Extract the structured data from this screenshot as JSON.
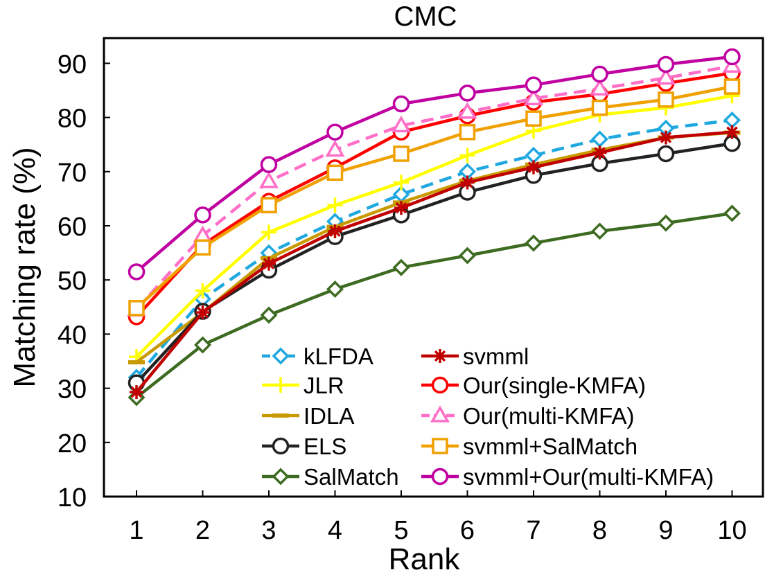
{
  "chart_data": {
    "type": "line",
    "title": "CMC",
    "xlabel": "Rank",
    "ylabel": "Matching rate (%)",
    "x": [
      1,
      2,
      3,
      4,
      5,
      6,
      7,
      8,
      9,
      10
    ],
    "xlim": [
      0.5,
      10.5
    ],
    "ylim": [
      10,
      95
    ],
    "yticks": [
      10,
      20,
      30,
      40,
      50,
      60,
      70,
      80,
      90
    ],
    "grid": false,
    "legend_position": "bottom-right",
    "series": [
      {
        "name": "kLFDA",
        "color": "#1fa8e0",
        "marker": "diamond-open",
        "dashed": true,
        "values": [
          32.0,
          46.5,
          55.0,
          60.8,
          65.8,
          70.0,
          73.0,
          76.0,
          78.0,
          79.5
        ]
      },
      {
        "name": "JLR",
        "color": "#ffff00",
        "marker": "plus",
        "dashed": false,
        "values": [
          35.8,
          48.0,
          58.8,
          63.8,
          68.0,
          73.0,
          77.5,
          80.5,
          81.8,
          84.0
        ]
      },
      {
        "name": "IDLA",
        "color": "#c89a00",
        "marker": "dash",
        "dashed": false,
        "values": [
          34.8,
          44.0,
          54.0,
          59.8,
          64.3,
          68.3,
          71.3,
          74.0,
          76.3,
          77.2
        ]
      },
      {
        "name": "ELS",
        "color": "#222222",
        "marker": "circle-open",
        "dashed": false,
        "values": [
          31.0,
          44.2,
          51.8,
          58.0,
          62.0,
          66.2,
          69.3,
          71.5,
          73.3,
          75.2
        ]
      },
      {
        "name": "SalMatch",
        "color": "#3d6b21",
        "marker": "diamond-open",
        "dashed": false,
        "values": [
          28.3,
          38.0,
          43.5,
          48.3,
          52.3,
          54.5,
          56.8,
          59.0,
          60.5,
          62.3
        ]
      },
      {
        "name": "svmml",
        "color": "#c00000",
        "marker": "asterisk",
        "dashed": false,
        "values": [
          29.3,
          44.0,
          53.0,
          59.0,
          63.3,
          68.0,
          70.8,
          73.5,
          76.3,
          77.3
        ]
      },
      {
        "name": "Our(single-KMFA)",
        "color": "#ff0000",
        "marker": "circle-open",
        "dashed": false,
        "values": [
          43.2,
          56.5,
          64.5,
          70.7,
          77.3,
          80.3,
          82.8,
          84.3,
          86.3,
          88.2
        ]
      },
      {
        "name": "Our(multi-KMFA)",
        "color": "#ff6fc8",
        "marker": "triangle-open",
        "dashed": true,
        "values": [
          44.5,
          58.2,
          68.2,
          74.0,
          78.5,
          81.0,
          83.5,
          85.3,
          87.3,
          89.5
        ]
      },
      {
        "name": "svmml+SalMatch",
        "color": "#f0a000",
        "marker": "square-open",
        "dashed": false,
        "values": [
          44.8,
          56.0,
          63.8,
          69.8,
          73.3,
          77.3,
          79.8,
          81.8,
          83.3,
          85.7
        ]
      },
      {
        "name": "svmml+Our(multi-KMFA)",
        "color": "#c000a0",
        "marker": "circle-open",
        "dashed": false,
        "values": [
          51.5,
          62.0,
          71.3,
          77.3,
          82.5,
          84.5,
          86.0,
          88.0,
          89.8,
          91.2
        ]
      }
    ]
  }
}
